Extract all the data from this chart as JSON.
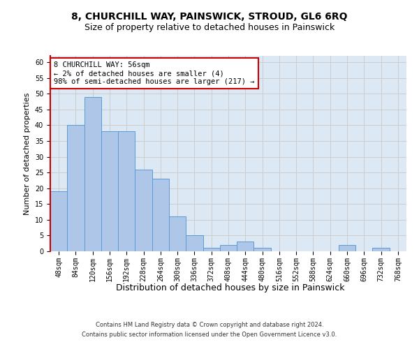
{
  "title": "8, CHURCHILL WAY, PAINSWICK, STROUD, GL6 6RQ",
  "subtitle": "Size of property relative to detached houses in Painswick",
  "xlabel": "Distribution of detached houses by size in Painswick",
  "ylabel": "Number of detached properties",
  "categories": [
    "48sqm",
    "84sqm",
    "120sqm",
    "156sqm",
    "192sqm",
    "228sqm",
    "264sqm",
    "300sqm",
    "336sqm",
    "372sqm",
    "408sqm",
    "444sqm",
    "480sqm",
    "516sqm",
    "552sqm",
    "588sqm",
    "624sqm",
    "660sqm",
    "696sqm",
    "732sqm",
    "768sqm"
  ],
  "values": [
    19,
    40,
    49,
    38,
    38,
    26,
    23,
    11,
    5,
    1,
    2,
    3,
    1,
    0,
    0,
    0,
    0,
    2,
    0,
    1,
    0
  ],
  "bar_color": "#aec6e8",
  "bar_edge_color": "#5b9bd5",
  "highlight_color": "#cc0000",
  "annotation_text": "8 CHURCHILL WAY: 56sqm\n← 2% of detached houses are smaller (4)\n98% of semi-detached houses are larger (217) →",
  "annotation_box_color": "#ffffff",
  "annotation_box_edge_color": "#cc0000",
  "ylim": [
    0,
    62
  ],
  "yticks": [
    0,
    5,
    10,
    15,
    20,
    25,
    30,
    35,
    40,
    45,
    50,
    55,
    60
  ],
  "footer_line1": "Contains HM Land Registry data © Crown copyright and database right 2024.",
  "footer_line2": "Contains public sector information licensed under the Open Government Licence v3.0.",
  "bg_color": "#ffffff",
  "grid_color": "#cccccc",
  "ax_bg_color": "#dce9f5",
  "title_fontsize": 10,
  "subtitle_fontsize": 9,
  "xlabel_fontsize": 9,
  "ylabel_fontsize": 8,
  "tick_fontsize": 7,
  "annotation_fontsize": 7.5,
  "footer_fontsize": 6
}
